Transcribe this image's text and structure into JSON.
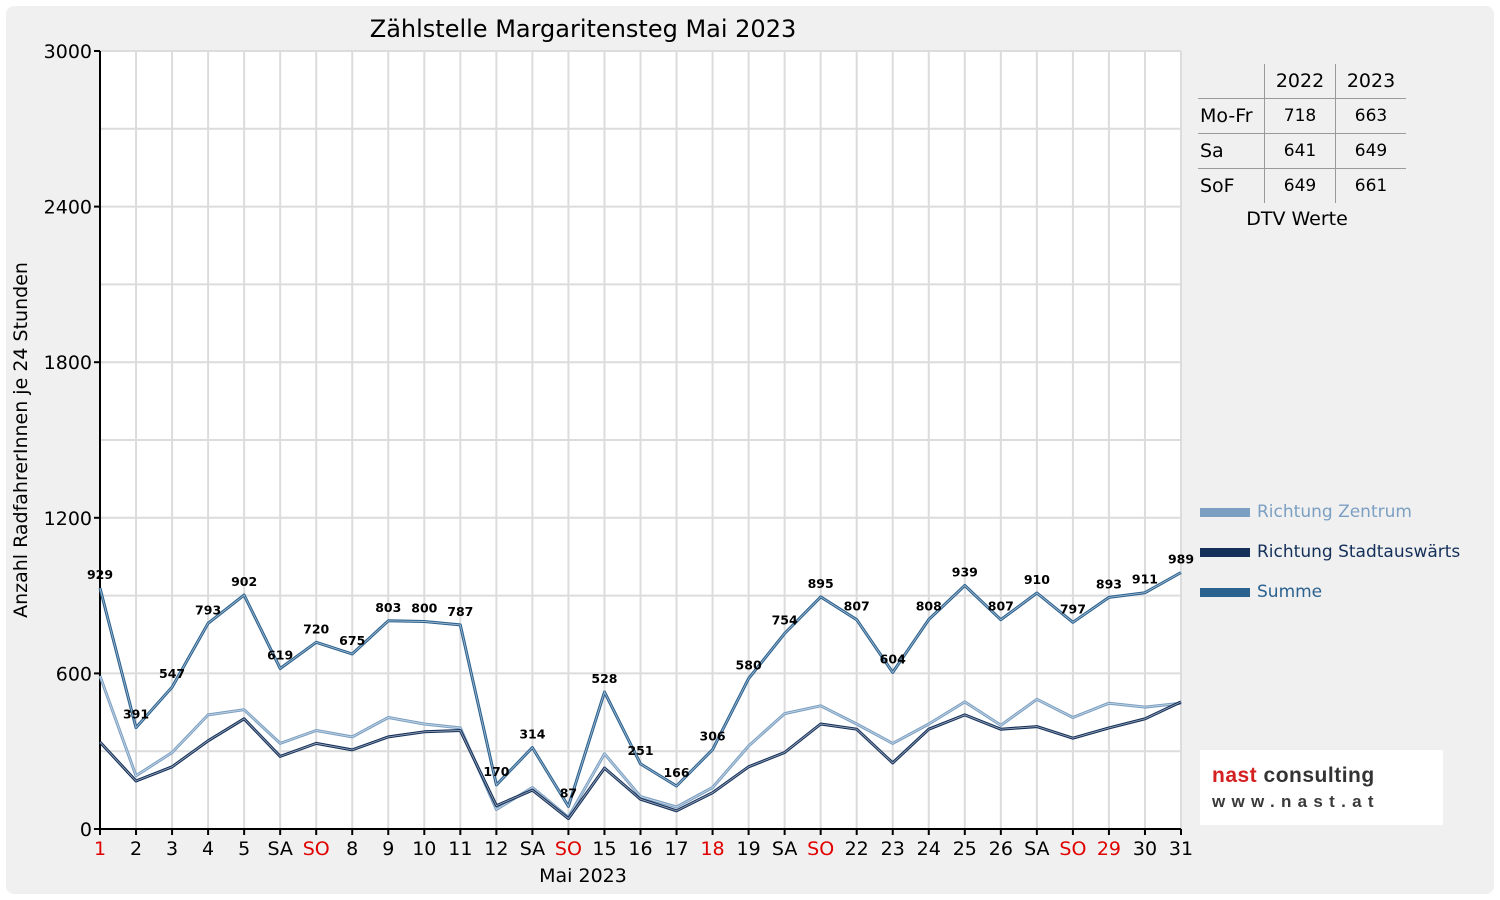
{
  "chart_data": {
    "type": "line",
    "title": "Zählstelle Margaritensteg Mai 2023",
    "xlabel": "Mai 2023",
    "ylabel": "Anzahl RadfahrerInnen je 24 Stunden",
    "ylim": [
      0,
      3000
    ],
    "yticks": [
      0,
      600,
      1200,
      1800,
      2400,
      3000
    ],
    "grid": true,
    "legend_position": "right",
    "categories": [
      "1",
      "2",
      "3",
      "4",
      "5",
      "SA",
      "SO",
      "8",
      "9",
      "10",
      "11",
      "12",
      "SA",
      "SO",
      "15",
      "16",
      "17",
      "18",
      "19",
      "SA",
      "SO",
      "22",
      "23",
      "24",
      "25",
      "26",
      "SA",
      "SO",
      "29",
      "30",
      "31"
    ],
    "red_categories": [
      0,
      6,
      13,
      17,
      20,
      27,
      28
    ],
    "series": [
      {
        "name": "Richtung Zentrum",
        "color": "#7b9fc2",
        "values": [
          590,
          205,
          295,
          440,
          460,
          330,
          380,
          355,
          430,
          405,
          390,
          75,
          160,
          45,
          290,
          125,
          85,
          160,
          320,
          445,
          475,
          405,
          330,
          405,
          490,
          400,
          500,
          430,
          485,
          470,
          485
        ]
      },
      {
        "name": "Richtung Stadtauswärts",
        "color": "#14305a",
        "values": [
          335,
          185,
          240,
          340,
          425,
          280,
          330,
          305,
          355,
          375,
          380,
          90,
          150,
          40,
          235,
          115,
          70,
          140,
          240,
          295,
          405,
          385,
          255,
          385,
          440,
          385,
          395,
          350,
          390,
          425,
          490
        ]
      },
      {
        "name": "Summe",
        "color": "#2a618f",
        "values": [
          929,
          391,
          547,
          793,
          902,
          619,
          720,
          675,
          803,
          800,
          787,
          170,
          314,
          87,
          528,
          251,
          166,
          306,
          580,
          754,
          895,
          807,
          604,
          808,
          939,
          807,
          910,
          797,
          893,
          911,
          989
        ]
      }
    ],
    "data_labels": [
      "929",
      "391",
      "547",
      "793",
      "902",
      "619",
      "720",
      "675",
      "803",
      "800",
      "787",
      "170",
      "314",
      "87",
      "528",
      "251",
      "166",
      "306",
      "580",
      "754",
      "895",
      "807",
      "604",
      "808",
      "939",
      "807",
      "910",
      "797",
      "893",
      "911",
      "989"
    ]
  },
  "dtv_table": {
    "col_headers": [
      "2022",
      "2023"
    ],
    "rows": [
      {
        "label": "Mo-Fr",
        "v2022": "718",
        "v2023": "663"
      },
      {
        "label": "Sa",
        "v2022": "641",
        "v2023": "649"
      },
      {
        "label": "SoF",
        "v2022": "649",
        "v2023": "661"
      }
    ],
    "caption": "DTV Werte"
  },
  "logo": {
    "name_part1": "nast",
    "name_part2": " consulting",
    "url": "www.nast.at",
    "color_red": "#d42020",
    "color_dark": "#333333"
  }
}
